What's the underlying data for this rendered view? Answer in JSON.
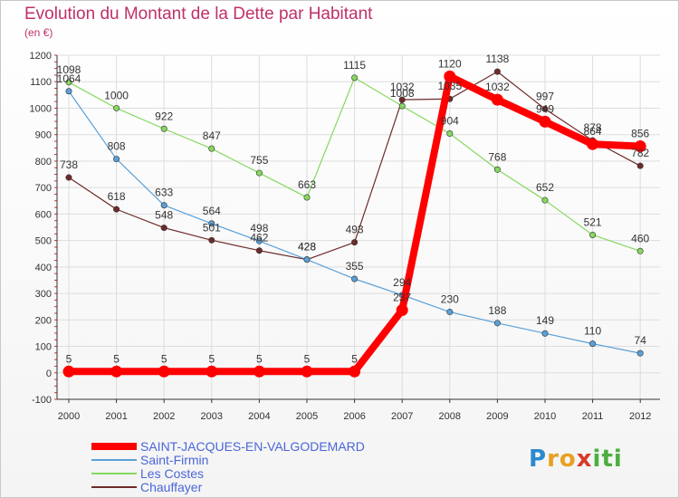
{
  "header": {
    "title": "Evolution du Montant de la Dette par Habitant",
    "subtitle": "(en €)"
  },
  "logo": {
    "text": "Proxiti"
  },
  "chart_data": {
    "type": "line",
    "title": "Evolution du Montant de la Dette par Habitant",
    "ylabel": "(en €)",
    "xlabel": "",
    "ylim": [
      -100,
      1200
    ],
    "grid": true,
    "x": [
      "2000",
      "2001",
      "2002",
      "2003",
      "2004",
      "2005",
      "2006",
      "2007",
      "2008",
      "2009",
      "2010",
      "2011",
      "2012"
    ],
    "yticks": [
      -100,
      0,
      100,
      200,
      300,
      400,
      500,
      600,
      700,
      800,
      900,
      1000,
      1100,
      1200
    ],
    "series": [
      {
        "name": "Chauffayer",
        "color": "#6e2a2a",
        "values": [
          738,
          618,
          548,
          501,
          462,
          428,
          493,
          1032,
          1035,
          1138,
          997,
          878,
          782
        ]
      },
      {
        "name": "Les Costes",
        "color": "#86d860",
        "values": [
          1098,
          1000,
          922,
          847,
          755,
          663,
          1115,
          1008,
          904,
          768,
          652,
          521,
          460
        ]
      },
      {
        "name": "Saint-Firmin",
        "color": "#5aa0d8",
        "values": [
          1064,
          808,
          633,
          564,
          498,
          428,
          355,
          294,
          230,
          188,
          149,
          110,
          74
        ]
      },
      {
        "name": "SAINT-JACQUES-EN-VALGODEMARD",
        "color": "#ff0000",
        "values": [
          5,
          5,
          5,
          5,
          5,
          5,
          5,
          237,
          1120,
          1032,
          949,
          864,
          856
        ]
      }
    ],
    "legend_order": [
      "SAINT-JACQUES-EN-VALGODEMARD",
      "Saint-Firmin",
      "Les Costes",
      "Chauffayer"
    ],
    "legend_position": "bottom-left"
  }
}
